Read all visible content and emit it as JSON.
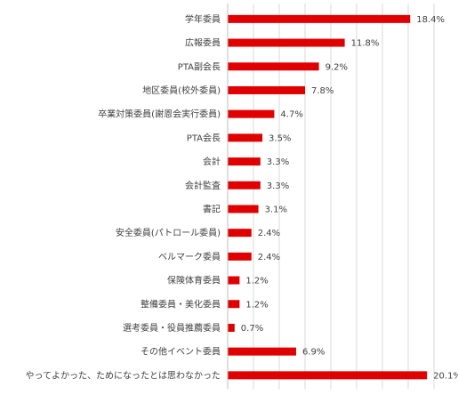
{
  "chart_data": {
    "type": "bar",
    "orientation": "horizontal",
    "categories": [
      "学年委員",
      "広報委員",
      "PTA副会長",
      "地区委員(校外委員)",
      "卒業対策委員(謝恩会実行委員)",
      "PTA会長",
      "会計",
      "会計監査",
      "書記",
      "安全委員(パトロール委員)",
      "ベルマーク委員",
      "保険体育委員",
      "整備委員・美化委員",
      "選考委員・役員推薦委員",
      "その他イベント委員",
      "やってよかった、ためになったとは思わなかった"
    ],
    "values": [
      18.4,
      11.8,
      9.2,
      7.8,
      4.7,
      3.5,
      3.3,
      3.3,
      3.1,
      2.4,
      2.4,
      1.2,
      1.2,
      0.7,
      6.9,
      20.1
    ],
    "value_labels": [
      "18.4%",
      "11.8%",
      "9.2%",
      "7.8%",
      "4.7%",
      "3.5%",
      "3.3%",
      "3.3%",
      "3.1%",
      "2.4%",
      "2.4%",
      "1.2%",
      "1.2%",
      "0.7%",
      "6.9%",
      "20.1%"
    ],
    "xlim": [
      0,
      20.8
    ],
    "grid": true,
    "bar_color": "#e00000",
    "title": "",
    "xlabel": "",
    "ylabel": ""
  }
}
